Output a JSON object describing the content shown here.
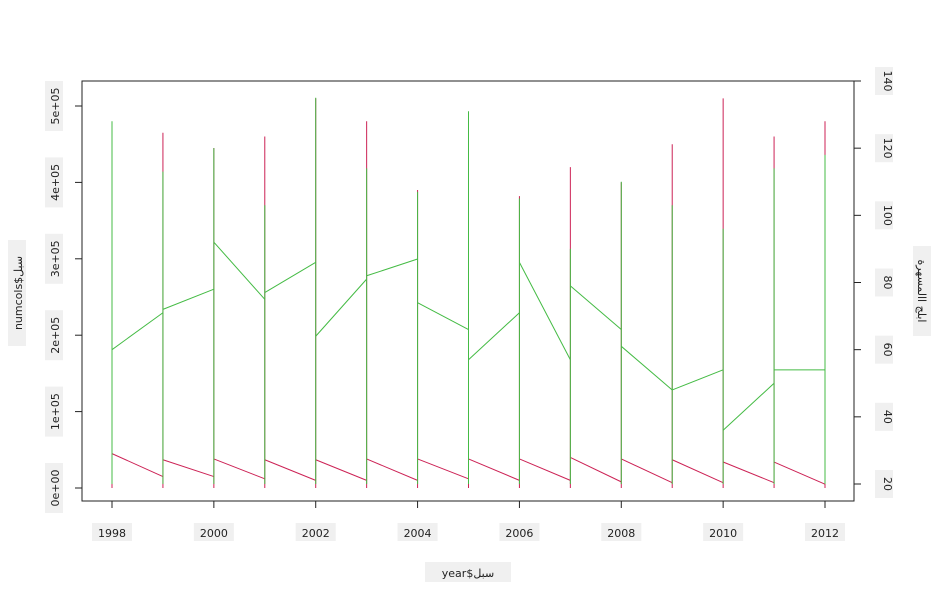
{
  "chart_data": {
    "type": "line",
    "xlabel": "year$سبل",
    "ylabel_left": "numcols$سبل",
    "ylabel_right": "ابلج االمسهرة",
    "x_ticks": [
      "1998",
      "2000",
      "2002",
      "2004",
      "2006",
      "2008",
      "2010",
      "2012"
    ],
    "y_left_ticks": [
      "0e+00",
      "1e+05",
      "2e+05",
      "3e+05",
      "4e+05",
      "5e+05"
    ],
    "y_right_ticks": [
      "20",
      "40",
      "60",
      "80",
      "100",
      "120",
      "140"
    ],
    "xlim": [
      1998,
      2012
    ],
    "ylim_left": [
      0,
      500000
    ],
    "ylim_right": [
      20,
      140
    ],
    "grid": false,
    "series": [
      {
        "axis": "left",
        "color": "#cc2255",
        "segments": [
          {
            "x": [
              1998,
              1999
            ],
            "y": [
              45000,
              15000
            ],
            "vline": [
              0,
              465000
            ]
          },
          {
            "x": [
              1999,
              2000
            ],
            "y": [
              37000,
              15000
            ],
            "vline": [
              0,
              465000
            ]
          },
          {
            "x": [
              2000,
              2001
            ],
            "y": [
              38000,
              12000
            ],
            "vline": [
              0,
              445000
            ]
          },
          {
            "x": [
              2001,
              2002
            ],
            "y": [
              37000,
              10000
            ],
            "vline": [
              0,
              460000
            ]
          },
          {
            "x": [
              2002,
              2003
            ],
            "y": [
              37000,
              10000
            ],
            "vline": [
              0,
              510000
            ]
          },
          {
            "x": [
              2003,
              2004
            ],
            "y": [
              38000,
              10000
            ],
            "vline": [
              0,
              480000
            ]
          },
          {
            "x": [
              2004,
              2005
            ],
            "y": [
              38000,
              12000
            ],
            "vline": [
              0,
              390000
            ]
          },
          {
            "x": [
              2005,
              2006
            ],
            "y": [
              38000,
              10000
            ],
            "vline": [
              0,
              490000
            ]
          },
          {
            "x": [
              2006,
              2007
            ],
            "y": [
              38000,
              10000
            ],
            "vline": [
              0,
              382000
            ]
          },
          {
            "x": [
              2007,
              2008
            ],
            "y": [
              40000,
              8000
            ],
            "vline": [
              0,
              420000
            ]
          },
          {
            "x": [
              2008,
              2009
            ],
            "y": [
              38000,
              7000
            ],
            "vline": [
              0,
              400000
            ]
          },
          {
            "x": [
              2009,
              2010
            ],
            "y": [
              37000,
              7000
            ],
            "vline": [
              0,
              450000
            ]
          },
          {
            "x": [
              2010,
              2011
            ],
            "y": [
              34000,
              7000
            ],
            "vline": [
              0,
              510000
            ]
          },
          {
            "x": [
              2011,
              2012
            ],
            "y": [
              34000,
              5000
            ],
            "vline": [
              0,
              460000
            ]
          },
          {
            "x": [
              2012,
              2012
            ],
            "y": [
              5000,
              5000
            ],
            "vline": [
              0,
              480000
            ]
          }
        ]
      },
      {
        "axis": "right",
        "color": "#44bb44",
        "segments": [
          {
            "x": [
              1998,
              1999
            ],
            "y": [
              60,
              71
            ],
            "vline": [
              20,
              128
            ]
          },
          {
            "x": [
              1999,
              2000
            ],
            "y": [
              72,
              78
            ],
            "vline": [
              20,
              113
            ]
          },
          {
            "x": [
              2000,
              2001
            ],
            "y": [
              92,
              75
            ],
            "vline": [
              20,
              120
            ]
          },
          {
            "x": [
              2001,
              2002
            ],
            "y": [
              77,
              86
            ],
            "vline": [
              20,
              103
            ]
          },
          {
            "x": [
              2002,
              2003
            ],
            "y": [
              64,
              81
            ],
            "vline": [
              20,
              135
            ]
          },
          {
            "x": [
              2003,
              2004
            ],
            "y": [
              82,
              87
            ],
            "vline": [
              20,
              114
            ]
          },
          {
            "x": [
              2004,
              2005
            ],
            "y": [
              74,
              66
            ],
            "vline": [
              20,
              107
            ]
          },
          {
            "x": [
              2005,
              2006
            ],
            "y": [
              57,
              71
            ],
            "vline": [
              20,
              131
            ]
          },
          {
            "x": [
              2006,
              2007
            ],
            "y": [
              86,
              57
            ],
            "vline": [
              20,
              105
            ]
          },
          {
            "x": [
              2007,
              2008
            ],
            "y": [
              79,
              66
            ],
            "vline": [
              20,
              90
            ]
          },
          {
            "x": [
              2008,
              2009
            ],
            "y": [
              61,
              48
            ],
            "vline": [
              20,
              110
            ]
          },
          {
            "x": [
              2009,
              2010
            ],
            "y": [
              48,
              54
            ],
            "vline": [
              20,
              103
            ]
          },
          {
            "x": [
              2010,
              2011
            ],
            "y": [
              36,
              50
            ],
            "vline": [
              20,
              96
            ]
          },
          {
            "x": [
              2011,
              2012
            ],
            "y": [
              54,
              54
            ],
            "vline": [
              20,
              114
            ]
          },
          {
            "x": [
              2012,
              2012
            ],
            "y": [
              54,
              54
            ],
            "vline": [
              20,
              118
            ]
          }
        ]
      }
    ]
  }
}
